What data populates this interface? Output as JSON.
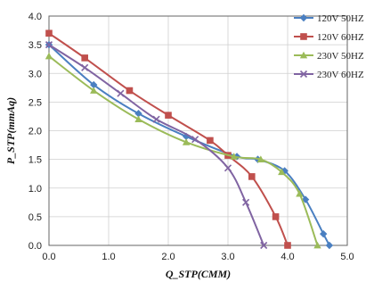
{
  "chart_data": {
    "type": "line",
    "xlabel": "Q_STP(CMM)",
    "ylabel": "P_STP(mmAq)",
    "xlim": [
      0,
      5
    ],
    "ylim": [
      0,
      4
    ],
    "xticks": [
      "0.0",
      "1.0",
      "2.0",
      "3.0",
      "4.0",
      "5.0"
    ],
    "yticks": [
      "0.0",
      "0.5",
      "1.0",
      "1.5",
      "2.0",
      "2.5",
      "3.0",
      "3.5",
      "4.0"
    ],
    "grid": true,
    "legend_position": "top-right",
    "series": [
      {
        "name": "120V 50HZ",
        "color": "#4a7fc1",
        "marker": "diamond",
        "points": [
          [
            0.0,
            3.5
          ],
          [
            0.75,
            2.8
          ],
          [
            1.5,
            2.3
          ],
          [
            2.3,
            1.9
          ],
          [
            3.15,
            1.55
          ],
          [
            3.5,
            1.5
          ],
          [
            3.95,
            1.3
          ],
          [
            4.3,
            0.8
          ],
          [
            4.6,
            0.2
          ],
          [
            4.7,
            0.0
          ]
        ]
      },
      {
        "name": "120V 60HZ",
        "color": "#c0504d",
        "marker": "square",
        "points": [
          [
            0.0,
            3.7
          ],
          [
            0.6,
            3.27
          ],
          [
            1.35,
            2.7
          ],
          [
            2.0,
            2.27
          ],
          [
            2.7,
            1.83
          ],
          [
            3.0,
            1.57
          ],
          [
            3.4,
            1.2
          ],
          [
            3.8,
            0.5
          ],
          [
            4.0,
            0.0
          ]
        ]
      },
      {
        "name": "230V 50HZ",
        "color": "#9bbb59",
        "marker": "triangle",
        "points": [
          [
            0.0,
            3.3
          ],
          [
            0.75,
            2.7
          ],
          [
            1.5,
            2.2
          ],
          [
            2.3,
            1.8
          ],
          [
            3.1,
            1.55
          ],
          [
            3.55,
            1.5
          ],
          [
            3.9,
            1.28
          ],
          [
            4.2,
            0.9
          ],
          [
            4.5,
            0.0
          ]
        ]
      },
      {
        "name": "230V 60HZ",
        "color": "#8064a2",
        "marker": "x",
        "points": [
          [
            0.0,
            3.5
          ],
          [
            0.6,
            3.1
          ],
          [
            1.2,
            2.65
          ],
          [
            1.8,
            2.2
          ],
          [
            2.45,
            1.85
          ],
          [
            3.0,
            1.35
          ],
          [
            3.3,
            0.75
          ],
          [
            3.6,
            0.0
          ]
        ]
      }
    ]
  }
}
